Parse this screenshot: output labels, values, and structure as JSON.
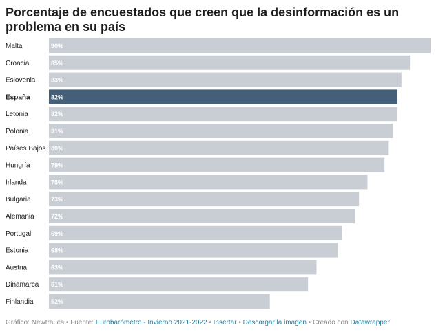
{
  "title": "Porcentaje de encuestados que creen que la desinformación es un problema en su país",
  "footer": {
    "credit": "Gráfico: Newtral.es",
    "source_prefix": "Fuente:",
    "source_link": "Eurobarómetro - Invierno 2021-2022",
    "embed": "Insertar",
    "download": "Descargar la imagen",
    "created_prefix": "Creado con",
    "created_link": "Datawrapper"
  },
  "colors": {
    "bar": "#c8ced4",
    "highlight": "#445f78",
    "value_text": "#ffffff",
    "link": "#1d81a2"
  },
  "chart_data": {
    "type": "bar",
    "orientation": "horizontal",
    "categories": [
      "Malta",
      "Croacia",
      "Eslovenia",
      "España",
      "Letonia",
      "Polonia",
      "Países Bajos",
      "Hungría",
      "Irlanda",
      "Bulgaria",
      "Alemania",
      "Portugal",
      "Estonia",
      "Austria",
      "Dinamarca",
      "Finlandia"
    ],
    "values": [
      90,
      85,
      83,
      82,
      82,
      81,
      80,
      79,
      75,
      73,
      72,
      69,
      68,
      63,
      61,
      52
    ],
    "value_labels": [
      "90%",
      "85%",
      "83%",
      "82%",
      "82%",
      "81%",
      "80%",
      "79%",
      "75%",
      "73%",
      "72%",
      "69%",
      "68%",
      "63%",
      "61%",
      "52%"
    ],
    "highlighted": "España",
    "xlim": [
      0,
      90
    ],
    "grid": false,
    "legend": "none"
  }
}
